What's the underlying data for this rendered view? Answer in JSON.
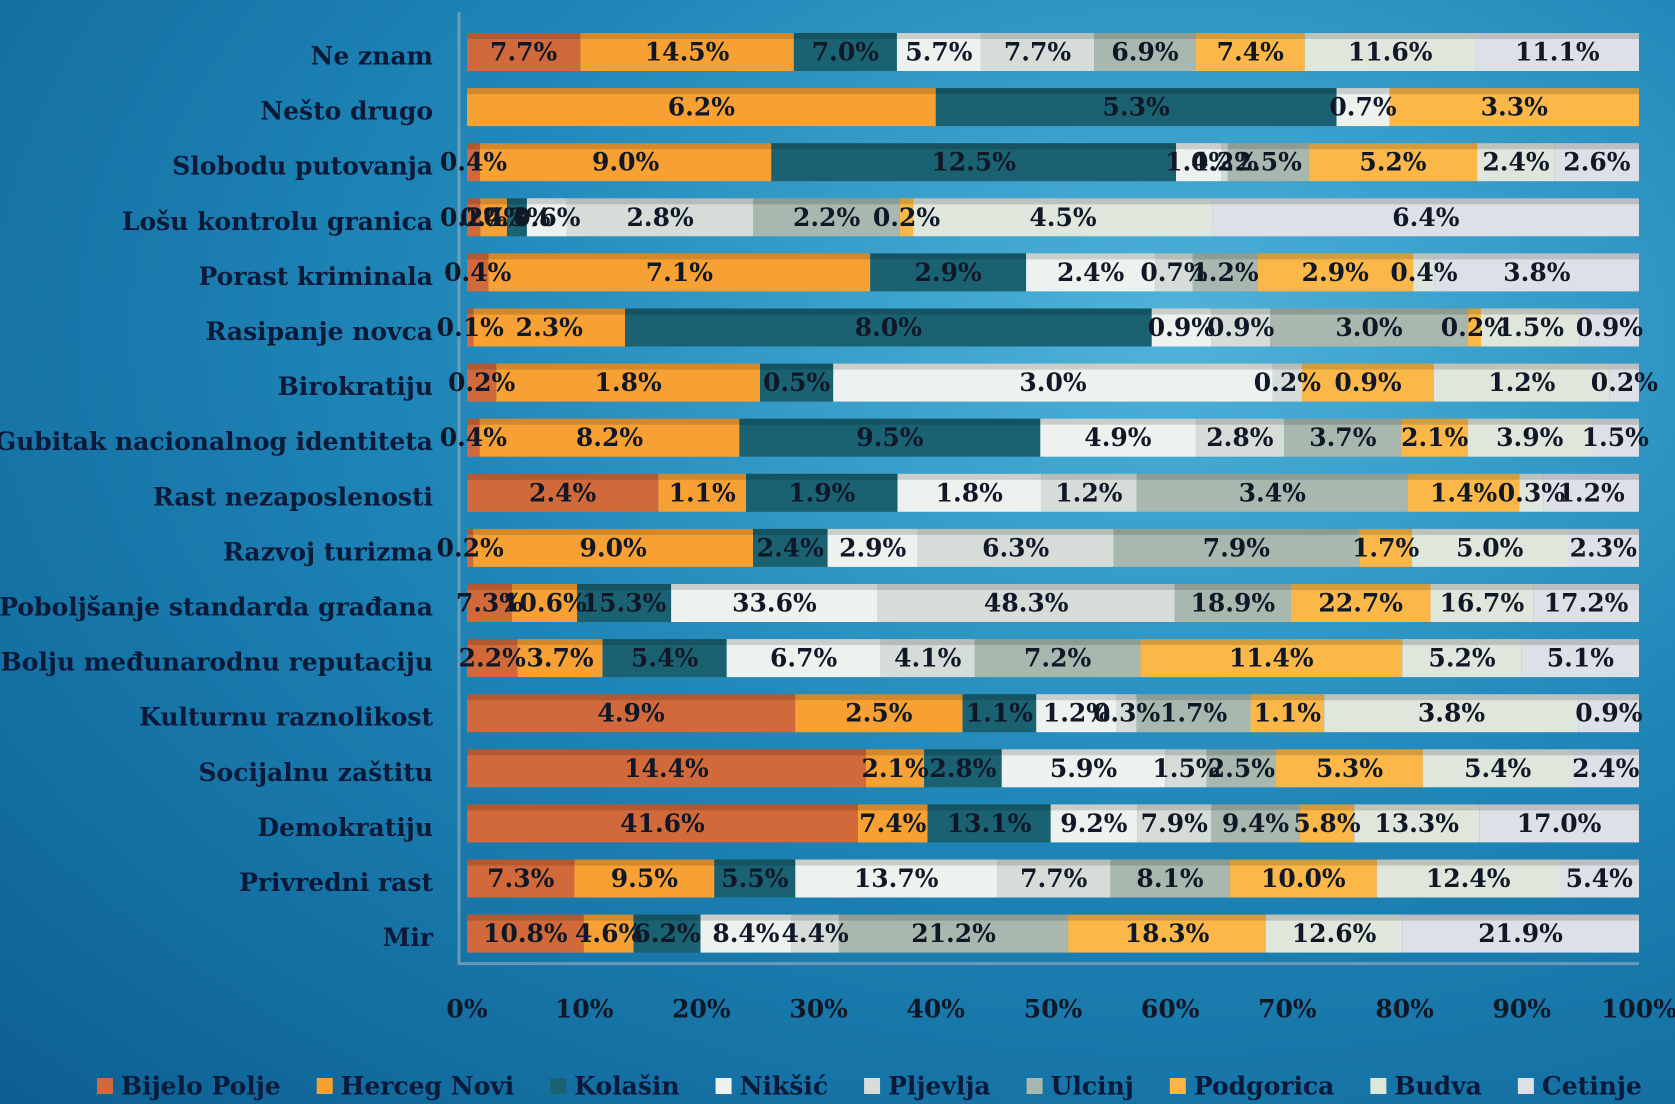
{
  "chart_data": {
    "type": "bar",
    "orientation": "horizontal",
    "stacking": "percent",
    "categories": [
      "Ne znam",
      "Nešto drugo",
      "Slobodu putovanja",
      "Lošu kontrolu granica",
      "Porast kriminala",
      "Rasipanje novca",
      "Birokratiju",
      "Gubitak nacionalnog identiteta",
      "Rast nezaposlenosti",
      "Razvoj turizma",
      "Poboljšanje standarda građana",
      "Bolju međunarodnu reputaciju",
      "Kulturnu raznolikost",
      "Socijalnu zaštitu",
      "Demokratiju",
      "Privredni rast",
      "Mir"
    ],
    "xlim": [
      0,
      100
    ],
    "xticks": [
      {
        "value": 0,
        "label": "0%"
      },
      {
        "value": 10,
        "label": "10%"
      },
      {
        "value": 20,
        "label": "20%"
      },
      {
        "value": 30,
        "label": "30%"
      },
      {
        "value": 40,
        "label": "40%"
      },
      {
        "value": 50,
        "label": "50%"
      },
      {
        "value": 60,
        "label": "60%"
      },
      {
        "value": 70,
        "label": "70%"
      },
      {
        "value": 80,
        "label": "80%"
      },
      {
        "value": 90,
        "label": "90%"
      },
      {
        "value": 100,
        "label": "100%"
      }
    ],
    "legend": "bottom",
    "series": [
      {
        "name": "Bijelo Polje",
        "color": "#d2693a",
        "values": [
          7.7,
          null,
          0.4,
          0.2,
          0.4,
          0.1,
          0.2,
          0.4,
          2.4,
          0.2,
          7.3,
          2.2,
          4.9,
          14.4,
          41.6,
          7.3,
          10.8
        ],
        "value_labels": [
          "7.7%",
          null,
          "0.4%",
          "0.2%",
          "0.4%",
          "0.1%",
          "0.2%",
          "0.4%",
          "2.4%",
          "0.2%",
          "7.3%",
          "2.2%",
          "4.9%",
          "14.4%",
          "41.6%",
          "7.3%",
          "10.8%"
        ]
      },
      {
        "name": "Herceg Novi",
        "color": "#f7a033",
        "values": [
          14.5,
          6.2,
          9.0,
          0.4,
          7.1,
          2.3,
          1.8,
          8.2,
          1.1,
          9.0,
          10.6,
          3.7,
          2.5,
          2.1,
          7.4,
          9.5,
          4.6
        ],
        "value_labels": [
          "14.5%",
          "6.2%",
          "9.0%",
          "0.4%",
          "7.1%",
          "2.3%",
          "1.8%",
          "8.2%",
          "1.1%",
          "9.0%",
          "10.6%",
          "3.7%",
          "2.5%",
          "2.1%",
          "7.4%",
          "9.5%",
          "4.6%"
        ]
      },
      {
        "name": "Kolašin",
        "color": "#1a6272",
        "values": [
          7.0,
          5.3,
          12.5,
          0.3,
          2.9,
          8.0,
          0.5,
          9.5,
          1.9,
          2.4,
          15.3,
          5.4,
          1.1,
          2.8,
          13.1,
          5.5,
          6.2
        ],
        "value_labels": [
          "7.0%",
          "5.3%",
          "12.5%",
          "0.3%",
          "2.9%",
          "8.0%",
          "0.5%",
          "9.5%",
          "1.9%",
          "2.4%",
          "15.3%",
          "5.4%",
          "1.1%",
          "2.8%",
          "13.1%",
          "5.5%",
          "6.2%"
        ]
      },
      {
        "name": "Nikšić",
        "color": "#eef2ee",
        "values": [
          5.7,
          0.7,
          1.4,
          0.6,
          2.4,
          0.9,
          3.0,
          4.9,
          1.8,
          2.9,
          33.6,
          6.7,
          1.2,
          5.9,
          9.2,
          13.7,
          8.4
        ],
        "value_labels": [
          "5.7%",
          "0.7%",
          "1.4%",
          "0.6%",
          "2.4%",
          "0.9%",
          "3.0%",
          "4.9%",
          "1.8%",
          "2.9%",
          "33.6%",
          "6.7%",
          "1.2%",
          "5.9%",
          "9.2%",
          "13.7%",
          "8.4%"
        ]
      },
      {
        "name": "Pljevlja",
        "color": "#d6ddd8",
        "values": [
          7.7,
          null,
          0.2,
          2.8,
          0.7,
          0.9,
          0.2,
          2.8,
          1.2,
          6.3,
          48.3,
          4.1,
          0.3,
          1.5,
          7.9,
          7.7,
          4.4
        ],
        "value_labels": [
          "7.7%",
          null,
          "0.2%",
          "2.8%",
          "0.7%",
          "0.9%",
          "0.2%",
          "2.8%",
          "1.2%",
          "6.3%",
          "48.3%",
          "4.1%",
          "0.3%",
          "1.5%",
          "7.9%",
          "7.7%",
          "4.4%"
        ]
      },
      {
        "name": "Ulcinj",
        "color": "#a9b8ae",
        "values": [
          6.9,
          null,
          2.5,
          2.2,
          1.2,
          3.0,
          null,
          3.7,
          3.4,
          7.9,
          18.9,
          7.2,
          1.7,
          2.5,
          9.4,
          8.1,
          21.2
        ],
        "value_labels": [
          "6.9%",
          null,
          "2.5%",
          "2.2%",
          "1.2%",
          "3.0%",
          null,
          "3.7%",
          "3.4%",
          "7.9%",
          "18.9%",
          "7.2%",
          "1.7%",
          "2.5%",
          "9.4%",
          "8.1%",
          "21.2%"
        ]
      },
      {
        "name": "Podgorica",
        "color": "#fbb848",
        "values": [
          7.4,
          3.3,
          5.2,
          0.2,
          2.9,
          0.2,
          0.9,
          2.1,
          1.4,
          1.7,
          22.7,
          11.4,
          1.1,
          5.3,
          5.8,
          10.0,
          18.3
        ],
        "value_labels": [
          "7.4%",
          "3.3%",
          "5.2%",
          "0.2%",
          "2.9%",
          "0.2%",
          "0.9%",
          "2.1%",
          "1.4%",
          "1.7%",
          "22.7%",
          "11.4%",
          "1.1%",
          "5.3%",
          "5.8%",
          "10.0%",
          "18.3%"
        ]
      },
      {
        "name": "Budva",
        "color": "#dfe6db",
        "values": [
          11.6,
          null,
          2.4,
          4.5,
          0.4,
          1.5,
          1.2,
          3.9,
          0.3,
          5.0,
          16.7,
          5.2,
          3.8,
          5.4,
          13.3,
          12.4,
          12.6
        ],
        "value_labels": [
          "11.6%",
          null,
          "2.4%",
          "4.5%",
          "0.4%",
          "1.5%",
          "1.2%",
          "3.9%",
          "0.3%",
          "5.0%",
          "16.7%",
          "5.2%",
          "3.8%",
          "5.4%",
          "13.3%",
          "12.4%",
          "12.6%"
        ]
      },
      {
        "name": "Cetinje",
        "color": "#dde0e6",
        "values": [
          11.1,
          null,
          2.6,
          6.4,
          3.8,
          0.9,
          0.2,
          1.5,
          1.2,
          2.3,
          17.2,
          5.1,
          0.9,
          2.4,
          17.0,
          5.4,
          21.9
        ],
        "value_labels": [
          "11.1%",
          null,
          "2.6%",
          "6.4%",
          "3.8%",
          "0.9%",
          "0.2%",
          "1.5%",
          "1.2%",
          "2.3%",
          "17.2%",
          "5.1%",
          "0.9%",
          "2.4%",
          "17.0%",
          "5.4%",
          "21.9%"
        ]
      }
    ]
  }
}
